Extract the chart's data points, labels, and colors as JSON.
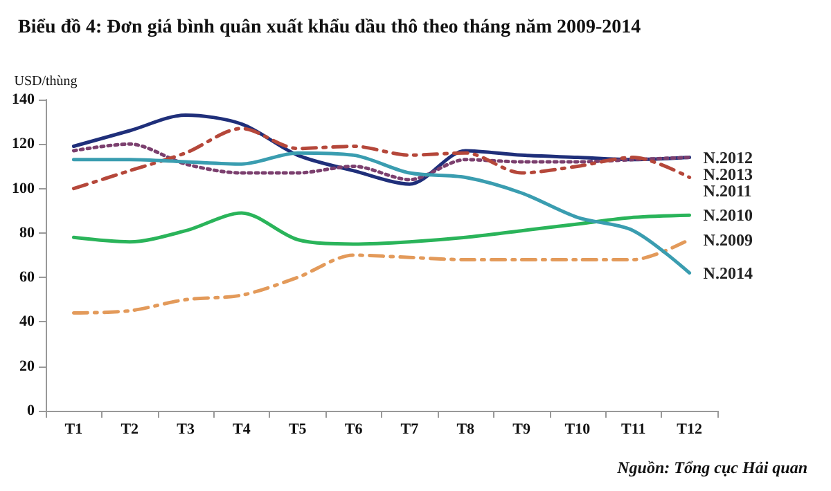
{
  "chart_data": {
    "type": "line",
    "title": "Biểu đồ 4: Đơn giá bình quân xuất khẩu dầu thô theo tháng năm 2009-2014",
    "ylabel": "USD/thùng",
    "annotations": [
      "Nguồn: Tổng cục Hải quan"
    ],
    "categories": [
      "T1",
      "T2",
      "T3",
      "T4",
      "T5",
      "T6",
      "T7",
      "T8",
      "T9",
      "T10",
      "T11",
      "T12"
    ],
    "series": [
      {
        "name": "N.2012",
        "color": "#1f2f7a",
        "line_style": "solid",
        "values": [
          119,
          126,
          133,
          129,
          115,
          108,
          102,
          117,
          115,
          114,
          113,
          114
        ]
      },
      {
        "name": "N.2013",
        "color": "#7b3f6e",
        "line_style": "dotted",
        "values": [
          117,
          120,
          111,
          107,
          107,
          110,
          104,
          113,
          112,
          112,
          113,
          114
        ]
      },
      {
        "name": "N.2011",
        "color": "#b5473a",
        "line_style": "dashed",
        "values": [
          100,
          108,
          116,
          127,
          118,
          119,
          115,
          116,
          107,
          110,
          114,
          105
        ]
      },
      {
        "name": "N.2010",
        "color": "#2ab45a",
        "line_style": "solid",
        "values": [
          78,
          76,
          81,
          89,
          77,
          75,
          76,
          78,
          81,
          84,
          87,
          88
        ]
      },
      {
        "name": "N.2009",
        "color": "#e39a5a",
        "line_style": "dashed",
        "values": [
          44,
          45,
          50,
          52,
          60,
          70,
          69,
          68,
          68,
          68,
          68,
          77
        ]
      },
      {
        "name": "N.2014",
        "color": "#3a9db0",
        "line_style": "solid",
        "values": [
          113,
          113,
          112,
          111,
          116,
          115,
          107,
          105,
          98,
          87,
          81,
          62
        ]
      }
    ],
    "ylim": [
      0,
      140
    ],
    "yticks": [
      0,
      20,
      40,
      60,
      80,
      100,
      120,
      140
    ],
    "grid": false,
    "legend": false,
    "marker": "none"
  }
}
